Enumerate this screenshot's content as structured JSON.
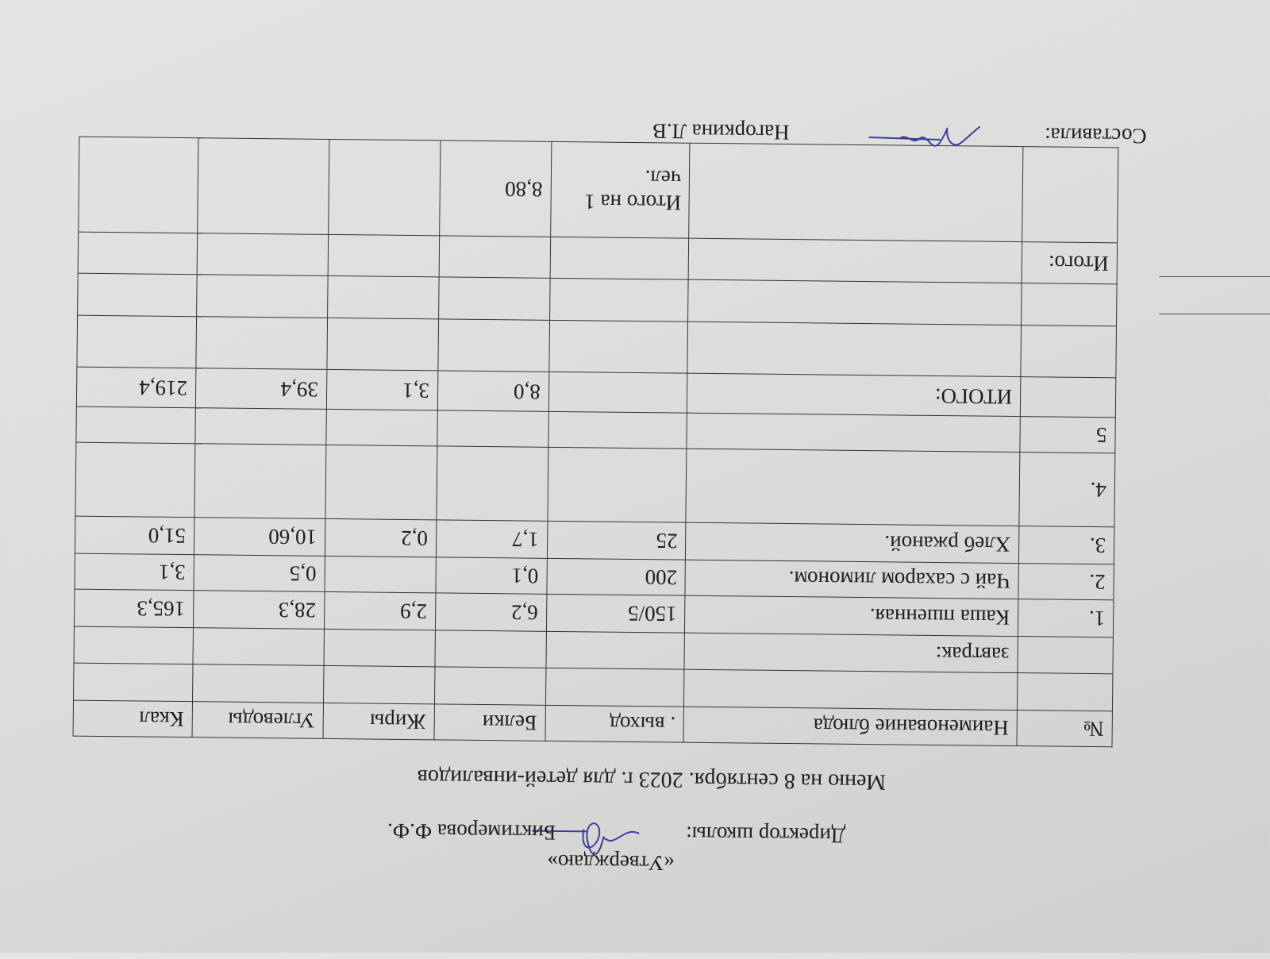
{
  "approval": {
    "label": "«Утверждаю»",
    "director_label": "Директор школы:",
    "director_name": "Биктимерова Ф.Ф."
  },
  "title": "Меню на  8 сентября.  2023 г.  для  детей-инвалидов",
  "table": {
    "headers": [
      "№",
      "Наименование блюда",
      ". выход",
      "Белки",
      "Жиры",
      "Углеводы",
      "Ккал"
    ],
    "rows": [
      [
        "",
        "",
        "",
        "",
        "",
        "",
        ""
      ],
      [
        "",
        "завтрак:",
        "",
        "",
        "",
        "",
        ""
      ],
      [
        "1.",
        "Каша пшенная.",
        "150/5",
        "6,2",
        "2,9",
        "28,3",
        "165,3"
      ],
      [
        "2.",
        "Чай с сахаром  лимоном.",
        "200",
        "0,1",
        "",
        "0,5",
        "3,1"
      ],
      [
        "3.",
        "Хлеб ржаной.",
        "25",
        "1,7",
        "0,2",
        "10,60",
        "51,0"
      ],
      [
        "4.",
        "",
        "",
        "",
        "",
        "",
        ""
      ],
      [
        "5",
        "",
        "",
        "",
        "",
        "",
        ""
      ],
      [
        "",
        "ИТОГО:",
        "",
        "8,0",
        "3,1",
        "39,4",
        "219,4"
      ],
      [
        "",
        "",
        "",
        "",
        "",
        "",
        ""
      ],
      [
        "",
        "",
        "",
        "",
        "",
        "",
        ""
      ],
      [
        "Итого:",
        "",
        "",
        "",
        "",
        "",
        ""
      ],
      [
        "",
        "",
        "Итого на 1 чел.",
        "8,80",
        "",
        "",
        ""
      ]
    ]
  },
  "compiled": {
    "label": "Составила:",
    "name": "Нагоркина Л.В"
  },
  "colors": {
    "ink": "#1d1d1d",
    "signature": "#3a3f9e",
    "paper": "#e0e0de"
  }
}
